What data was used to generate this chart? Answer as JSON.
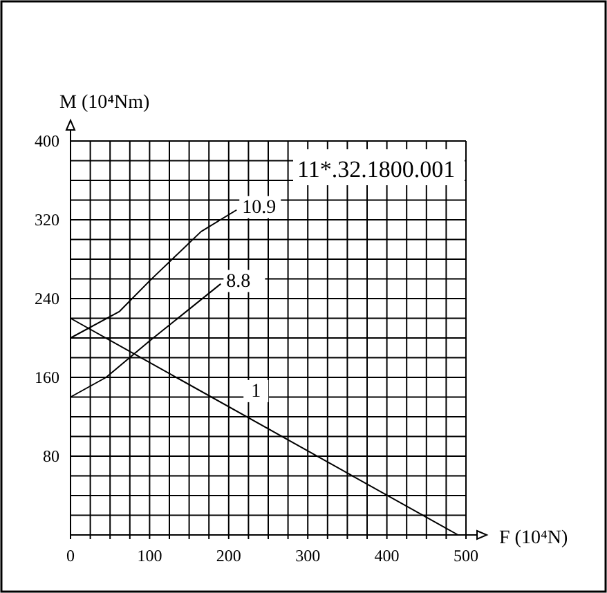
{
  "chart_data": {
    "type": "line",
    "title": "11*.32.1800.001",
    "xlabel": "F (10⁴N)",
    "ylabel": "M (10⁴Nm)",
    "xlim": [
      0,
      500
    ],
    "ylim": [
      0,
      400
    ],
    "xticks": [
      0,
      {
        "value": 25,
        "label": null
      },
      {
        "value": 50,
        "label": null
      },
      {
        "value": 75,
        "label": null
      },
      100,
      {
        "value": 125,
        "label": null
      },
      {
        "value": 150,
        "label": null
      },
      {
        "value": 175,
        "label": null
      },
      200,
      {
        "value": 225,
        "label": null
      },
      {
        "value": 250,
        "label": null
      },
      {
        "value": 275,
        "label": null
      },
      300,
      {
        "value": 325,
        "label": null
      },
      {
        "value": 350,
        "label": null
      },
      {
        "value": 375,
        "label": null
      },
      400,
      {
        "value": 425,
        "label": null
      },
      {
        "value": 450,
        "label": null
      },
      {
        "value": 475,
        "label": null
      },
      500
    ],
    "yticks": [
      {
        "value": 0,
        "label": null
      },
      {
        "value": 20,
        "label": null
      },
      {
        "value": 40,
        "label": null
      },
      {
        "value": 60,
        "label": null
      },
      80,
      {
        "value": 100,
        "label": null
      },
      {
        "value": 120,
        "label": null
      },
      {
        "value": 140,
        "label": null
      },
      160,
      {
        "value": 180,
        "label": null
      },
      {
        "value": 200,
        "label": null
      },
      {
        "value": 220,
        "label": null
      },
      240,
      {
        "value": 260,
        "label": null
      },
      {
        "value": 280,
        "label": null
      },
      {
        "value": 300,
        "label": null
      },
      320,
      {
        "value": 340,
        "label": null
      },
      {
        "value": 360,
        "label": null
      },
      {
        "value": 380,
        "label": null
      },
      400
    ],
    "grid": true,
    "marker": "none",
    "line_style": "solid",
    "series": [
      {
        "name": "10.9",
        "color": "#000000",
        "x": [
          0,
          62,
          100,
          165,
          210
        ],
        "values": [
          200,
          227,
          258,
          308,
          330
        ]
      },
      {
        "name": "8.8",
        "color": "#000000",
        "x": [
          0,
          45,
          100,
          190
        ],
        "values": [
          140,
          160,
          197,
          255
        ]
      },
      {
        "name": "1",
        "color": "#000000",
        "x": [
          0,
          490
        ],
        "values": [
          220,
          0
        ]
      }
    ]
  }
}
